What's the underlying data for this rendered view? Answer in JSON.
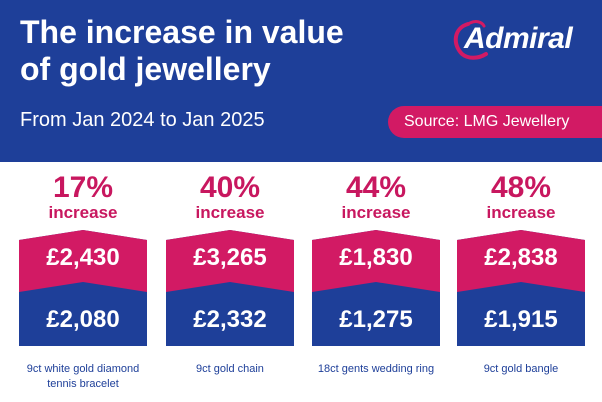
{
  "header": {
    "title_line1": "The increase in value",
    "title_line2": "of gold jewellery",
    "subtitle": "From Jan 2024 to Jan 2025",
    "source": "Source: LMG Jewellery",
    "logo": "Admiral"
  },
  "colors": {
    "navy": "#1e3f99",
    "pink": "#d21a64",
    "white": "#ffffff"
  },
  "items": [
    {
      "percent": "17%",
      "increase_label": "increase",
      "price_2025": "£2,430",
      "price_2024": "£2,080",
      "name_line1": "9ct white gold diamond",
      "name_line2": "tennis bracelet"
    },
    {
      "percent": "40%",
      "increase_label": "increase",
      "price_2025": "£3,265",
      "price_2024": "£2,332",
      "name_line1": "9ct gold chain",
      "name_line2": ""
    },
    {
      "percent": "44%",
      "increase_label": "increase",
      "price_2025": "£1,830",
      "price_2024": "£1,275",
      "name_line1": "18ct gents wedding ring",
      "name_line2": ""
    },
    {
      "percent": "48%",
      "increase_label": "increase",
      "price_2025": "£2,838",
      "price_2024": "£1,915",
      "name_line1": "9ct gold bangle",
      "name_line2": ""
    }
  ]
}
